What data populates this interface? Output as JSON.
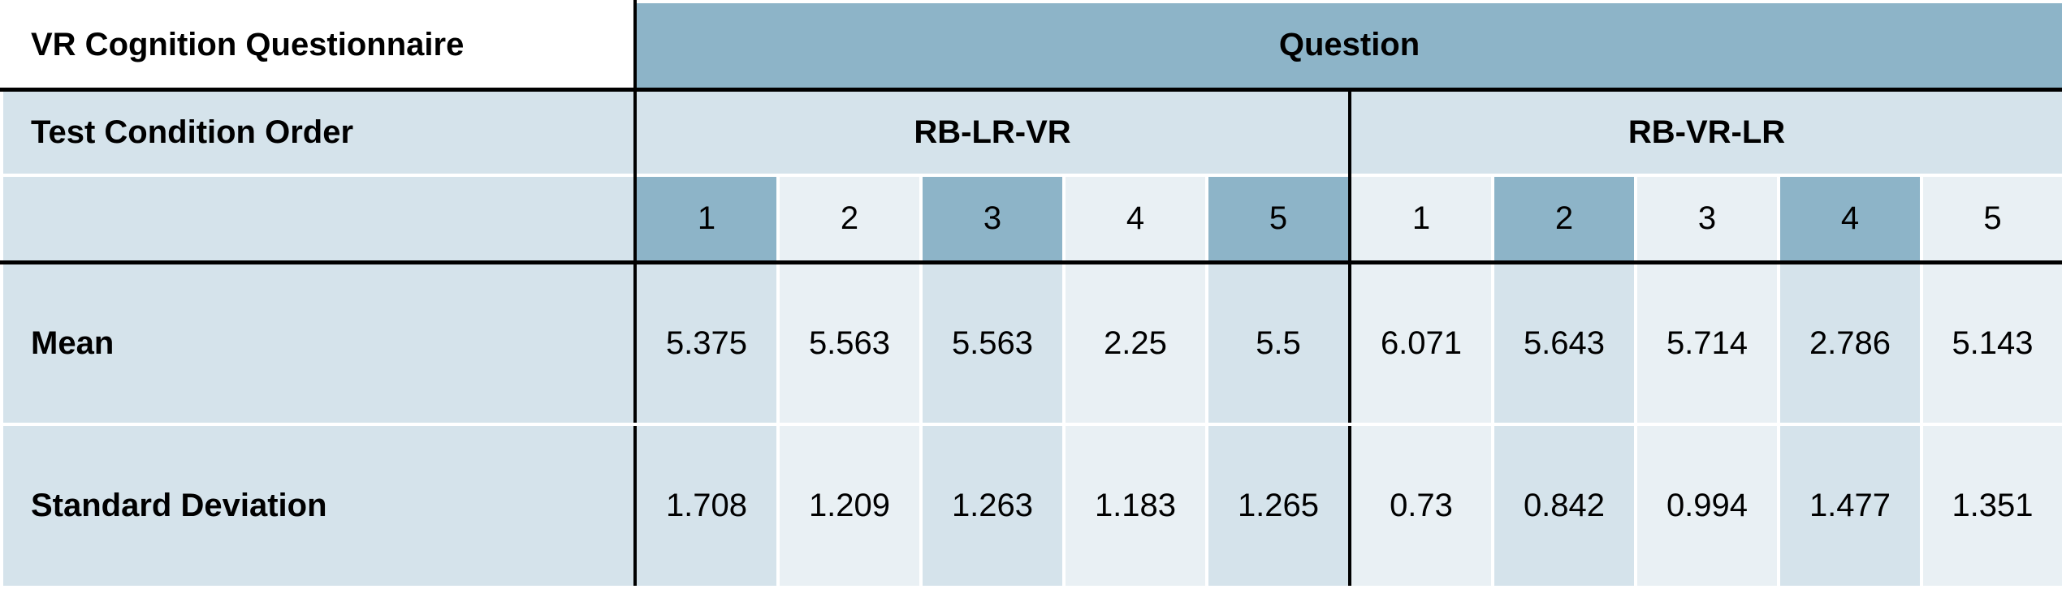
{
  "table": {
    "corner_label": "VR Cognition Questionnaire",
    "header_label": "Question",
    "order_label": "Test Condition Order",
    "groups": [
      "RB-LR-VR",
      "RB-VR-LR"
    ],
    "question_numbers": [
      "1",
      "2",
      "3",
      "4",
      "5",
      "1",
      "2",
      "3",
      "4",
      "5"
    ],
    "rows": [
      {
        "label": "Mean",
        "values": [
          "5.375",
          "5.563",
          "5.563",
          "2.25",
          "5.5",
          "6.071",
          "5.643",
          "5.714",
          "2.786",
          "5.143"
        ]
      },
      {
        "label": "Standard Deviation",
        "values": [
          "1.708",
          "1.209",
          "1.263",
          "1.183",
          "1.265",
          "0.73",
          "0.842",
          "0.994",
          "1.477",
          "1.351"
        ]
      }
    ]
  },
  "colors": {
    "header_dark": "#8db4c8",
    "cell_medium": "#d5e3eb",
    "cell_light": "#e9f0f4",
    "rule": "#000000"
  }
}
